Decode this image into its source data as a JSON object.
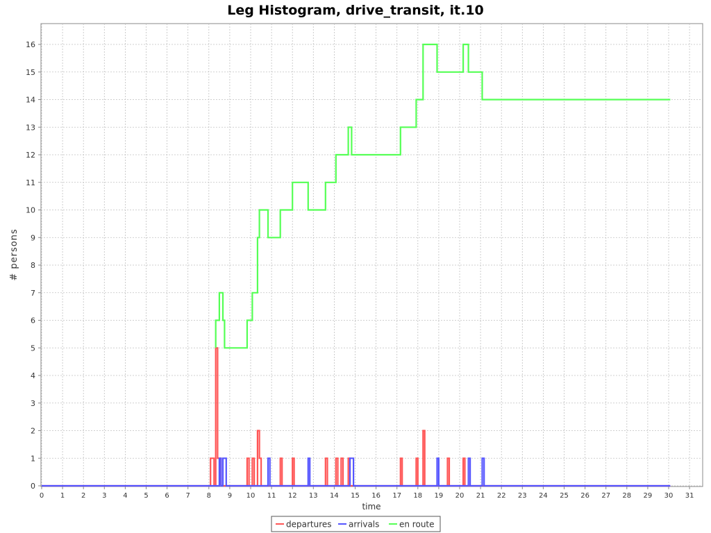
{
  "chart_data": {
    "type": "line",
    "title": "Leg Histogram, drive_transit, it.10",
    "xlabel": "time",
    "ylabel": "# persons",
    "xlim": [
      0,
      31
    ],
    "ylim": [
      0,
      16.8
    ],
    "x_ticks": [
      0,
      1,
      2,
      3,
      4,
      5,
      6,
      7,
      8,
      9,
      10,
      11,
      12,
      13,
      14,
      15,
      16,
      17,
      18,
      19,
      20,
      21,
      22,
      23,
      24,
      25,
      26,
      27,
      28,
      29,
      30,
      31
    ],
    "y_ticks": [
      0,
      1,
      2,
      3,
      4,
      5,
      6,
      7,
      8,
      9,
      10,
      11,
      12,
      13,
      14,
      15,
      16
    ],
    "grid": true,
    "legend_position": "bottom",
    "series": [
      {
        "name": "departures",
        "color": "#ff5555",
        "step": true,
        "points": [
          [
            0,
            0
          ],
          [
            8.08,
            0
          ],
          [
            8.08,
            1
          ],
          [
            8.25,
            1
          ],
          [
            8.25,
            0
          ],
          [
            8.33,
            0
          ],
          [
            8.33,
            5
          ],
          [
            8.42,
            5
          ],
          [
            8.42,
            1
          ],
          [
            8.58,
            1
          ],
          [
            8.58,
            0
          ],
          [
            9.83,
            0
          ],
          [
            9.83,
            1
          ],
          [
            9.92,
            1
          ],
          [
            9.92,
            0
          ],
          [
            10.08,
            0
          ],
          [
            10.08,
            1
          ],
          [
            10.17,
            1
          ],
          [
            10.17,
            0
          ],
          [
            10.33,
            0
          ],
          [
            10.33,
            2
          ],
          [
            10.42,
            2
          ],
          [
            10.42,
            1
          ],
          [
            10.5,
            1
          ],
          [
            10.5,
            0
          ],
          [
            11.42,
            0
          ],
          [
            11.42,
            1
          ],
          [
            11.5,
            1
          ],
          [
            11.5,
            0
          ],
          [
            12.0,
            0
          ],
          [
            12.0,
            1
          ],
          [
            12.08,
            1
          ],
          [
            12.08,
            0
          ],
          [
            13.58,
            0
          ],
          [
            13.58,
            1
          ],
          [
            13.67,
            1
          ],
          [
            13.67,
            0
          ],
          [
            14.08,
            0
          ],
          [
            14.08,
            1
          ],
          [
            14.17,
            1
          ],
          [
            14.17,
            0
          ],
          [
            14.33,
            0
          ],
          [
            14.33,
            1
          ],
          [
            14.42,
            1
          ],
          [
            14.42,
            0
          ],
          [
            14.67,
            0
          ],
          [
            14.67,
            1
          ],
          [
            14.75,
            1
          ],
          [
            14.75,
            0
          ],
          [
            17.17,
            0
          ],
          [
            17.17,
            1
          ],
          [
            17.25,
            1
          ],
          [
            17.25,
            0
          ],
          [
            17.92,
            0
          ],
          [
            17.92,
            1
          ],
          [
            18.0,
            1
          ],
          [
            18.0,
            0
          ],
          [
            18.25,
            0
          ],
          [
            18.25,
            2
          ],
          [
            18.33,
            2
          ],
          [
            18.33,
            0
          ],
          [
            19.42,
            0
          ],
          [
            19.42,
            1
          ],
          [
            19.5,
            1
          ],
          [
            19.5,
            0
          ],
          [
            20.17,
            0
          ],
          [
            20.17,
            1
          ],
          [
            20.25,
            1
          ],
          [
            20.25,
            0
          ],
          [
            30.08,
            0
          ]
        ]
      },
      {
        "name": "arrivals",
        "color": "#5555ff",
        "step": true,
        "points": [
          [
            0,
            0
          ],
          [
            8.5,
            0
          ],
          [
            8.5,
            1
          ],
          [
            8.58,
            1
          ],
          [
            8.58,
            0
          ],
          [
            8.67,
            0
          ],
          [
            8.67,
            1
          ],
          [
            8.83,
            1
          ],
          [
            8.83,
            0
          ],
          [
            10.83,
            0
          ],
          [
            10.83,
            1
          ],
          [
            10.92,
            1
          ],
          [
            10.92,
            0
          ],
          [
            12.75,
            0
          ],
          [
            12.75,
            1
          ],
          [
            12.83,
            1
          ],
          [
            12.83,
            0
          ],
          [
            14.75,
            0
          ],
          [
            14.75,
            1
          ],
          [
            14.92,
            1
          ],
          [
            14.92,
            0
          ],
          [
            18.92,
            0
          ],
          [
            18.92,
            1
          ],
          [
            19.0,
            1
          ],
          [
            19.0,
            0
          ],
          [
            20.42,
            0
          ],
          [
            20.42,
            1
          ],
          [
            20.5,
            1
          ],
          [
            20.5,
            0
          ],
          [
            21.08,
            0
          ],
          [
            21.08,
            1
          ],
          [
            21.17,
            1
          ],
          [
            21.17,
            0
          ],
          [
            30.08,
            0
          ]
        ]
      },
      {
        "name": "en route",
        "color": "#55ff55",
        "step": true,
        "points": [
          [
            8.33,
            5
          ],
          [
            8.33,
            6
          ],
          [
            8.5,
            6
          ],
          [
            8.5,
            7
          ],
          [
            8.67,
            7
          ],
          [
            8.67,
            6
          ],
          [
            8.75,
            6
          ],
          [
            8.75,
            5
          ],
          [
            9.83,
            5
          ],
          [
            9.83,
            6
          ],
          [
            10.08,
            6
          ],
          [
            10.08,
            7
          ],
          [
            10.33,
            7
          ],
          [
            10.33,
            9
          ],
          [
            10.42,
            9
          ],
          [
            10.42,
            10
          ],
          [
            10.83,
            10
          ],
          [
            10.83,
            9
          ],
          [
            11.42,
            9
          ],
          [
            11.42,
            10
          ],
          [
            12.0,
            10
          ],
          [
            12.0,
            11
          ],
          [
            12.75,
            11
          ],
          [
            12.75,
            10
          ],
          [
            13.58,
            10
          ],
          [
            13.58,
            11
          ],
          [
            14.08,
            11
          ],
          [
            14.08,
            12
          ],
          [
            14.67,
            12
          ],
          [
            14.67,
            13
          ],
          [
            14.83,
            13
          ],
          [
            14.83,
            12
          ],
          [
            17.17,
            12
          ],
          [
            17.17,
            13
          ],
          [
            17.92,
            13
          ],
          [
            17.92,
            14
          ],
          [
            18.25,
            14
          ],
          [
            18.25,
            16
          ],
          [
            18.92,
            16
          ],
          [
            18.92,
            15
          ],
          [
            20.17,
            15
          ],
          [
            20.17,
            16
          ],
          [
            20.42,
            16
          ],
          [
            20.42,
            15
          ],
          [
            21.08,
            15
          ],
          [
            21.08,
            14
          ],
          [
            30.08,
            14
          ]
        ]
      }
    ]
  }
}
